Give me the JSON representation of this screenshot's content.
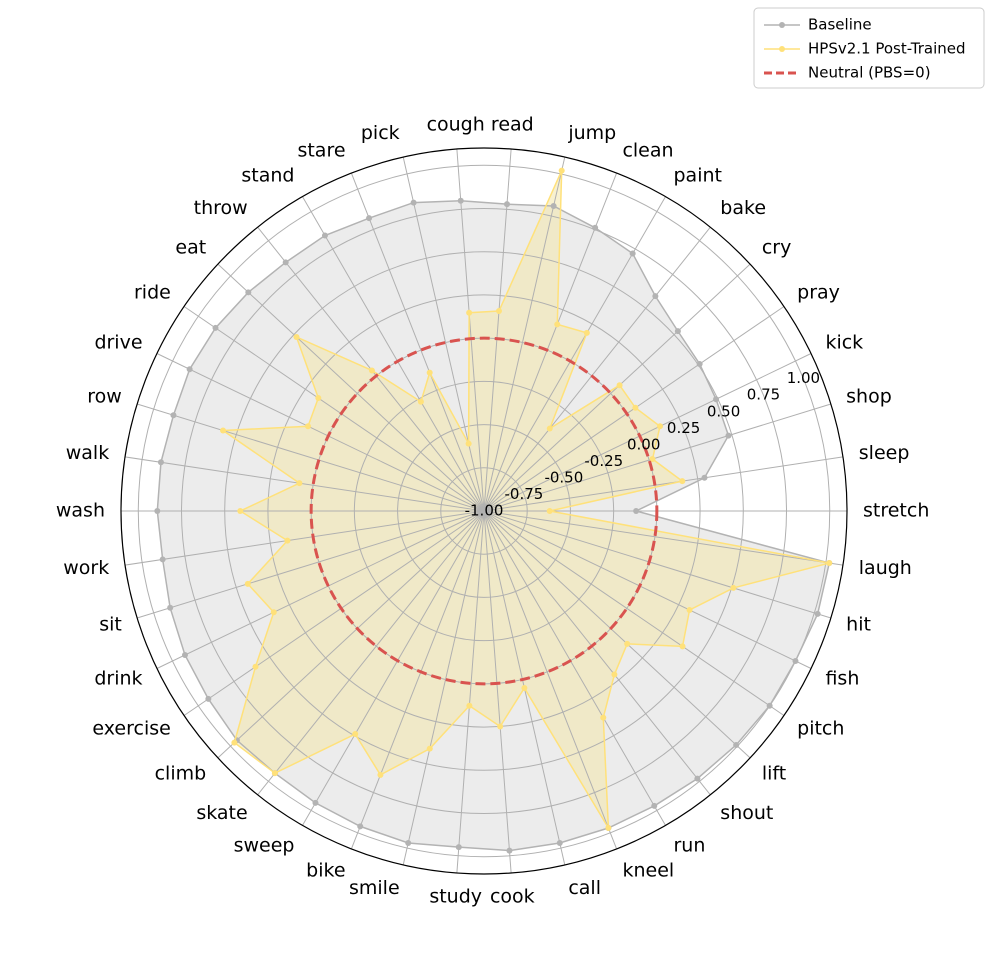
{
  "chart_data": {
    "type": "radar",
    "categories": [
      "stretch",
      "sleep",
      "shop",
      "kick",
      "pray",
      "cry",
      "bake",
      "paint",
      "clean",
      "jump",
      "read",
      "cough",
      "pick",
      "stare",
      "stand",
      "throw",
      "eat",
      "ride",
      "drive",
      "row",
      "walk",
      "wash",
      "work",
      "sit",
      "drink",
      "exercise",
      "climb",
      "skate",
      "sweep",
      "bike",
      "smile",
      "study",
      "cook",
      "call",
      "kneel",
      "run",
      "shout",
      "lift",
      "pitch",
      "fish",
      "hit",
      "laugh"
    ],
    "series": [
      {
        "name": "Baseline",
        "color": "#b3b3b3",
        "fill": "#e0e0e0",
        "values": [
          -0.12,
          0.29,
          0.48,
          0.49,
          0.51,
          0.53,
          0.59,
          0.72,
          0.76,
          0.81,
          0.78,
          0.8,
          0.83,
          0.82,
          0.84,
          0.84,
          0.86,
          0.88,
          0.89,
          0.88,
          0.89,
          0.89,
          0.88,
          0.9,
          0.92,
          0.93,
          0.95,
          0.94,
          0.95,
          0.96,
          0.97,
          0.95,
          0.97,
          0.97,
          0.97,
          0.97,
          0.98,
          0.99,
          1.0,
          1.0,
          1.02,
          1.02
        ]
      },
      {
        "name": "HPSv2.1 Post-Trained",
        "color": "#ffe17a",
        "fill": "#f3e8b0",
        "values": [
          -0.62,
          0.16,
          0.02,
          0.13,
          0.06,
          0.07,
          -0.39,
          0.19,
          0.16,
          1.02,
          0.16,
          0.15,
          -0.6,
          -0.14,
          -0.27,
          0.04,
          0.48,
          0.16,
          0.13,
          0.58,
          0.08,
          0.41,
          0.15,
          0.43,
          0.35,
          0.6,
          0.97,
          0.94,
          0.49,
          0.64,
          0.41,
          0.13,
          0.25,
          0.05,
          0.97,
          0.38,
          0.21,
          0.13,
          0.39,
          0.32,
          0.51,
          1.02
        ]
      }
    ],
    "reference_lines": [
      {
        "name": "Neutral (PBS=0)",
        "value": 0,
        "color": "#d9534f"
      }
    ],
    "ylim": [
      -1,
      1.1
    ],
    "yticks": [
      {
        "value": -1,
        "label": "-1.00"
      },
      {
        "value": -0.75,
        "label": "-0.75"
      },
      {
        "value": -0.5,
        "label": "-0.50"
      },
      {
        "value": -0.25,
        "label": "-0.25"
      },
      {
        "value": 0,
        "label": "0.00"
      },
      {
        "value": 0.25,
        "label": "0.25"
      },
      {
        "value": 0.5,
        "label": "0.50"
      },
      {
        "value": 0.75,
        "label": "0.75"
      },
      {
        "value": 1,
        "label": "1.00"
      }
    ],
    "grid": true,
    "legend": "upper right"
  }
}
